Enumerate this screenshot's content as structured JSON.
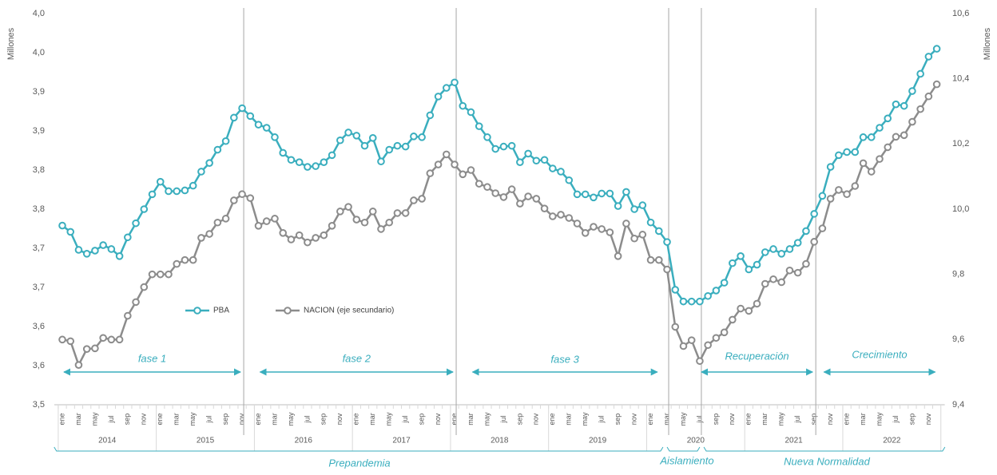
{
  "chart_data": {
    "type": "line",
    "ylabel": "Millones",
    "y2label": "Millones",
    "categories": [
      "ene",
      null,
      "mar",
      null,
      "may",
      null,
      "jul",
      null,
      "sep",
      null,
      "nov",
      null,
      "ene",
      null,
      "mar",
      null,
      "may",
      null,
      "jul",
      null,
      "sep",
      null,
      "nov",
      null,
      "ene",
      null,
      "mar",
      null,
      "may",
      null,
      "jul",
      null,
      "sep",
      null,
      "nov",
      null,
      "ene",
      null,
      "mar",
      null,
      "may",
      null,
      "jul",
      null,
      "sep",
      null,
      "nov",
      null,
      "ene",
      null,
      "mar",
      null,
      "may",
      null,
      "jul",
      null,
      "sep",
      null,
      "nov",
      null,
      "ene",
      null,
      "mar",
      null,
      "may",
      null,
      "jul",
      null,
      "sep",
      null,
      "nov",
      null,
      "ene",
      null,
      "mar",
      null,
      "may",
      null,
      "jul",
      null,
      "sep",
      null,
      "nov",
      null,
      "ene",
      null,
      "mar",
      null,
      "may",
      null,
      "jul",
      null,
      "sep",
      null,
      "nov",
      null,
      "ene",
      null,
      "mar",
      null,
      "may",
      null,
      "jul",
      null,
      "sep",
      null,
      "nov",
      null
    ],
    "years": [
      "2014",
      "2015",
      "2016",
      "2017",
      "2018",
      "2019",
      "2020",
      "2021",
      "2022"
    ],
    "series": [
      {
        "name": "PBA",
        "color": "#3aaebe",
        "values": [
          3.729,
          3.721,
          3.698,
          3.693,
          3.697,
          3.704,
          3.699,
          3.69,
          3.714,
          3.732,
          3.75,
          3.769,
          3.785,
          3.773,
          3.773,
          3.774,
          3.78,
          3.798,
          3.809,
          3.826,
          3.837,
          3.867,
          3.879,
          3.869,
          3.858,
          3.854,
          3.842,
          3.822,
          3.813,
          3.81,
          3.804,
          3.805,
          3.81,
          3.819,
          3.838,
          3.848,
          3.844,
          3.831,
          3.841,
          3.811,
          3.826,
          3.831,
          3.83,
          3.843,
          3.842,
          3.87,
          3.894,
          3.905,
          3.912,
          3.882,
          3.874,
          3.856,
          3.842,
          3.827,
          3.83,
          3.831,
          3.81,
          3.821,
          3.812,
          3.813,
          3.802,
          3.798,
          3.787,
          3.769,
          3.769,
          3.765,
          3.77,
          3.77,
          3.754,
          3.772,
          3.75,
          3.755,
          3.733,
          3.722,
          3.708,
          3.647,
          3.632,
          3.632,
          3.632,
          3.639,
          3.646,
          3.656,
          3.681,
          3.69,
          3.673,
          3.679,
          3.695,
          3.699,
          3.693,
          3.699,
          3.707,
          3.722,
          3.744,
          3.767,
          3.804,
          3.819,
          3.823,
          3.823,
          3.842,
          3.842,
          3.854,
          3.866,
          3.884,
          3.882,
          3.901,
          3.923,
          3.945,
          3.955
        ]
      },
      {
        "name": "NACION (eje secundario)",
        "color": "#8c8c8c",
        "axis": "y2",
        "values": [
          9.6,
          9.595,
          9.522,
          9.571,
          9.573,
          9.605,
          9.6,
          9.6,
          9.673,
          9.715,
          9.761,
          9.8,
          9.8,
          9.8,
          9.832,
          9.844,
          9.844,
          9.912,
          9.924,
          9.959,
          9.971,
          10.027,
          10.046,
          10.034,
          9.949,
          9.963,
          9.971,
          9.927,
          9.907,
          9.92,
          9.898,
          9.912,
          9.92,
          9.949,
          9.993,
          10.007,
          9.968,
          9.959,
          9.993,
          9.939,
          9.959,
          9.988,
          9.988,
          10.027,
          10.032,
          10.11,
          10.137,
          10.168,
          10.137,
          10.107,
          10.12,
          10.078,
          10.068,
          10.049,
          10.037,
          10.061,
          10.017,
          10.039,
          10.032,
          10.002,
          9.978,
          9.983,
          9.973,
          9.956,
          9.927,
          9.946,
          9.939,
          9.929,
          9.856,
          9.956,
          9.91,
          9.922,
          9.844,
          9.844,
          9.815,
          9.639,
          9.58,
          9.598,
          9.534,
          9.583,
          9.605,
          9.622,
          9.661,
          9.695,
          9.688,
          9.71,
          9.771,
          9.785,
          9.776,
          9.812,
          9.805,
          9.832,
          9.9,
          9.941,
          10.032,
          10.059,
          10.046,
          10.071,
          10.141,
          10.115,
          10.154,
          10.19,
          10.222,
          10.227,
          10.268,
          10.307,
          10.346,
          10.383
        ]
      }
    ],
    "ylim": [
      3.5,
      4.0
    ],
    "yticks": [
      {
        "value": 3.5,
        "label": "3,5"
      },
      {
        "value": 3.55,
        "label": "3,6"
      },
      {
        "value": 3.6,
        "label": "3,6"
      },
      {
        "value": 3.65,
        "label": "3,7"
      },
      {
        "value": 3.7,
        "label": "3,7"
      },
      {
        "value": 3.75,
        "label": "3,8"
      },
      {
        "value": 3.8,
        "label": "3,8"
      },
      {
        "value": 3.85,
        "label": "3,9"
      },
      {
        "value": 3.9,
        "label": "3,9"
      },
      {
        "value": 3.95,
        "label": "4,0"
      },
      {
        "value": 4.0,
        "label": "4,0"
      }
    ],
    "y2lim": [
      9.4,
      10.6
    ],
    "y2ticks": [
      {
        "value": 9.4,
        "label": "9,4"
      },
      {
        "value": 9.6,
        "label": "9,6"
      },
      {
        "value": 9.8,
        "label": "9,8"
      },
      {
        "value": 10.0,
        "label": "10,0"
      },
      {
        "value": 10.2,
        "label": "10,2"
      },
      {
        "value": 10.4,
        "label": "10,4"
      },
      {
        "value": 10.6,
        "label": "10,6"
      }
    ],
    "annotations": [
      "fase 1",
      "fase 2",
      "fase 3",
      "Recuperación",
      "Crecimiento"
    ],
    "periods": [
      "Prepandemia",
      "Aislamiento",
      "Nueva Normalidad"
    ]
  }
}
